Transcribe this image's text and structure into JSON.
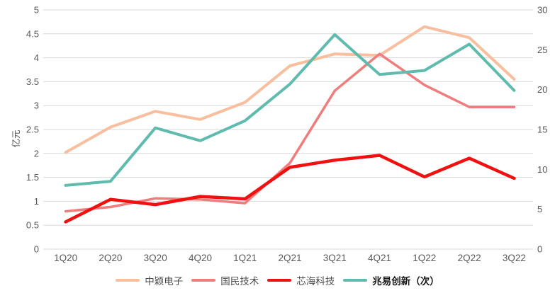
{
  "chart_data": {
    "type": "line",
    "title": "",
    "categories": [
      "1Q20",
      "2Q20",
      "3Q20",
      "4Q20",
      "1Q21",
      "2Q21",
      "3Q21",
      "4Q21",
      "1Q22",
      "2Q22",
      "3Q22"
    ],
    "left_axis": {
      "title": "亿元",
      "min": 0,
      "max": 5,
      "step": 0.5,
      "tick_labels": [
        "0",
        "0.5",
        "1",
        "1.5",
        "2",
        "2.5",
        "3",
        "3.5",
        "4",
        "4.5",
        "5"
      ]
    },
    "right_axis": {
      "min": 0,
      "max": 30,
      "step": 5,
      "tick_labels": [
        "0",
        "5",
        "10",
        "15",
        "20",
        "25",
        "30"
      ]
    },
    "series": [
      {
        "name": "中颖电子",
        "axis": "left",
        "color": "#F8BE9E",
        "line_width": 4,
        "legend_bold": false,
        "values": [
          2.02,
          2.55,
          2.88,
          2.71,
          3.07,
          3.83,
          4.08,
          4.05,
          4.65,
          4.42,
          3.55
        ]
      },
      {
        "name": "国民技术",
        "axis": "left",
        "color": "#EF7D7D",
        "line_width": 3.5,
        "legend_bold": false,
        "values": [
          0.79,
          0.88,
          1.06,
          1.04,
          0.96,
          1.8,
          3.31,
          4.08,
          3.43,
          2.97,
          2.97
        ]
      },
      {
        "name": "芯海科技",
        "axis": "left",
        "color": "#F01010",
        "line_width": 4.5,
        "legend_bold": false,
        "values": [
          0.57,
          1.04,
          0.93,
          1.1,
          1.05,
          1.71,
          1.86,
          1.96,
          1.51,
          1.9,
          1.48
        ]
      },
      {
        "name": "兆易创新（次）",
        "axis": "right",
        "color": "#5FBBAE",
        "line_width": 4,
        "legend_bold": true,
        "values": [
          8.0,
          8.5,
          15.2,
          13.6,
          16.1,
          20.7,
          26.9,
          21.9,
          22.4,
          25.7,
          19.9
        ]
      }
    ],
    "grid": true,
    "grid_color": "#D9D9D9",
    "text_color": "#595959",
    "legend_position": "bottom"
  }
}
